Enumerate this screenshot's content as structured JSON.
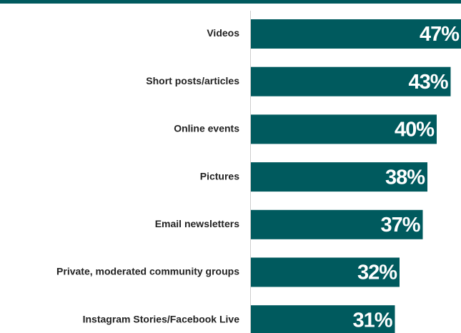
{
  "chart_data": {
    "type": "barh",
    "categories": [
      "Videos",
      "Short posts/articles",
      "Online events",
      "Pictures",
      "Email newsletters",
      "Private, moderated community groups",
      "Instagram Stories/Facebook Live"
    ],
    "values": [
      47,
      43,
      40,
      38,
      37,
      32,
      31
    ],
    "value_labels": [
      "47%",
      "43%",
      "40%",
      "38%",
      "37%",
      "32%",
      "31%"
    ],
    "color": "#005a5e"
  }
}
